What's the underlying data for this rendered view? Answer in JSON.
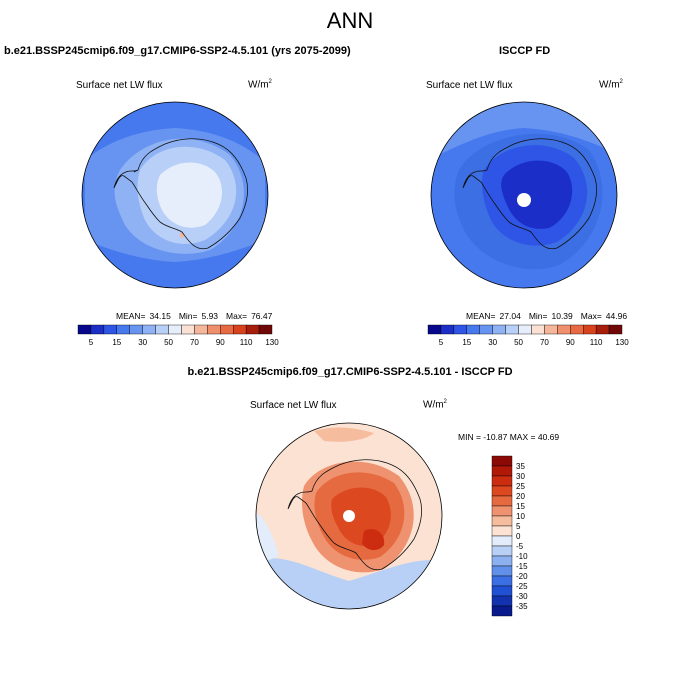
{
  "figure": {
    "title": "ANN"
  },
  "panels": {
    "model": {
      "title": "b.e21.BSSP245cmip6.f09_g17.CMIP6-SSP2-4.5.101 (yrs 2075-2099)",
      "variable": "Surface net LW flux",
      "units_base": "W/m",
      "units_exp": "2",
      "stats": {
        "mean_label": "MEAN=",
        "mean": "34.15",
        "min_label": "Min=",
        "min": "5.93",
        "max_label": "Max=",
        "max": "76.47"
      },
      "colorbar_ticks": [
        "5",
        "15",
        "30",
        "50",
        "70",
        "90",
        "110",
        "130"
      ]
    },
    "obs": {
      "title": "ISCCP FD",
      "variable": "Surface net LW flux",
      "units_base": "W/m",
      "units_exp": "2",
      "stats": {
        "mean_label": "MEAN=",
        "mean": "27.04",
        "min_label": "Min=",
        "min": "10.39",
        "max_label": "Max=",
        "max": "44.96"
      },
      "colorbar_ticks": [
        "5",
        "15",
        "30",
        "50",
        "70",
        "90",
        "110",
        "130"
      ]
    },
    "diff": {
      "title": "b.e21.BSSP245cmip6.f09_g17.CMIP6-SSP2-4.5.101 - ISCCP FD",
      "variable": "Surface net LW flux",
      "units_base": "W/m",
      "units_exp": "2",
      "minmax": "MIN = -10.87 MAX =  40.69",
      "colorbar_ticks": [
        "35",
        "30",
        "25",
        "20",
        "15",
        "10",
        "5",
        "0",
        "-5",
        "-10",
        "-15",
        "-20",
        "-25",
        "-30",
        "-35"
      ]
    }
  },
  "colors": {
    "abs_scale": [
      "#08088c",
      "#1c2ec8",
      "#2e55e6",
      "#4678ee",
      "#6694f0",
      "#8fb2f4",
      "#b8cff7",
      "#e6eefc",
      "#fbe1d4",
      "#f4b79c",
      "#ef8f6c",
      "#e86a42",
      "#d8431e",
      "#a81e0a",
      "#700808"
    ],
    "diff_scale": [
      "#8c0a06",
      "#b01808",
      "#cc2c10",
      "#dc4820",
      "#e66a40",
      "#ef9270",
      "#f6bc9e",
      "#fbe2d2",
      "#e2ecfa",
      "#b8d0f5",
      "#8cb0f0",
      "#6090ea",
      "#3c6ee4",
      "#2050d4",
      "#1232b0",
      "#081a8c"
    ],
    "coastline": "#111111"
  }
}
